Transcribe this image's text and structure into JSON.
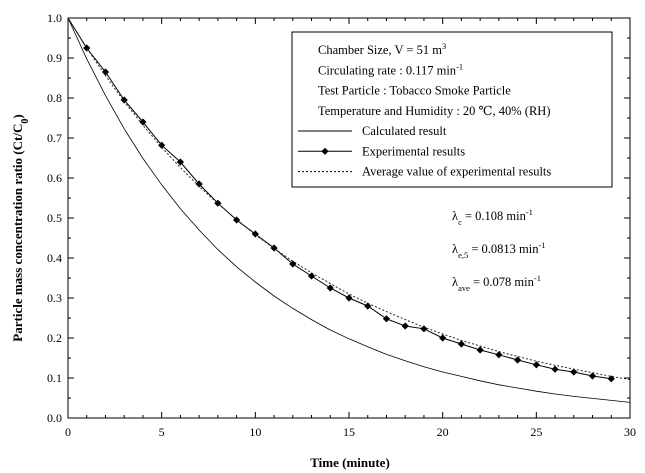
{
  "chart_data": {
    "type": "line",
    "xlabel": "Time (minute)",
    "ylabel": "Particle mass concentration ratio (Ct/C",
    "ylabel_sub": "0",
    "ylabel_end": ")",
    "xlim": [
      0,
      30
    ],
    "ylim": [
      0.0,
      1.0
    ],
    "x_ticks": [
      "0",
      "5",
      "10",
      "15",
      "20",
      "25",
      "30"
    ],
    "y_ticks": [
      "0.0",
      "0.1",
      "0.2",
      "0.3",
      "0.4",
      "0.5",
      "0.6",
      "0.7",
      "0.8",
      "0.9",
      "1.0"
    ],
    "grid": false,
    "legend_position": "top-right",
    "legend_header": [
      {
        "text": "Chamber Size, V = 51 m",
        "sup": "3"
      },
      {
        "text": "Circulating rate : 0.117 min",
        "sup": "-1"
      },
      {
        "text": "Test Particle : Tobacco Smoke Particle",
        "sup": ""
      },
      {
        "text": "Temperature and Humidity : 20 ℃, 40% (RH)",
        "sup": ""
      }
    ],
    "series": [
      {
        "name": "Calculated result",
        "style": "solid",
        "x": [
          0,
          1,
          2,
          3,
          4,
          5,
          6,
          7,
          8,
          9,
          10,
          11,
          12,
          13,
          14,
          15,
          16,
          17,
          18,
          19,
          20,
          21,
          22,
          23,
          24,
          25,
          26,
          27,
          28,
          29,
          30
        ],
        "y": [
          1.0,
          0.898,
          0.806,
          0.723,
          0.649,
          0.583,
          0.523,
          0.47,
          0.421,
          0.378,
          0.34,
          0.305,
          0.274,
          0.246,
          0.22,
          0.198,
          0.178,
          0.159,
          0.143,
          0.128,
          0.115,
          0.104,
          0.093,
          0.083,
          0.075,
          0.067,
          0.06,
          0.054,
          0.049,
          0.044,
          0.039
        ]
      },
      {
        "name": "Experimental results",
        "style": "solid-diamond",
        "x": [
          0,
          1,
          2,
          3,
          4,
          5,
          6,
          7,
          8,
          9,
          10,
          11,
          12,
          13,
          14,
          15,
          16,
          17,
          18,
          19,
          20,
          21,
          22,
          23,
          24,
          25,
          26,
          27,
          28,
          29
        ],
        "y": [
          1.0,
          0.925,
          0.865,
          0.795,
          0.74,
          0.682,
          0.64,
          0.585,
          0.537,
          0.495,
          0.46,
          0.425,
          0.385,
          0.355,
          0.325,
          0.3,
          0.28,
          0.248,
          0.23,
          0.223,
          0.2,
          0.185,
          0.17,
          0.158,
          0.145,
          0.133,
          0.122,
          0.115,
          0.105,
          0.098
        ]
      },
      {
        "name": "Average value of experimental results",
        "style": "dotted",
        "x": [
          0,
          1,
          2,
          3,
          4,
          5,
          6,
          7,
          8,
          9,
          10,
          11,
          12,
          13,
          14,
          15,
          16,
          17,
          18,
          19,
          20,
          21,
          22,
          23,
          24,
          25,
          26,
          27,
          28,
          29,
          30
        ],
        "y": [
          1.0,
          0.925,
          0.856,
          0.791,
          0.732,
          0.677,
          0.626,
          0.579,
          0.536,
          0.496,
          0.458,
          0.424,
          0.392,
          0.363,
          0.336,
          0.31,
          0.287,
          0.266,
          0.246,
          0.227,
          0.21,
          0.194,
          0.18,
          0.166,
          0.154,
          0.142,
          0.132,
          0.122,
          0.113,
          0.104,
          0.096
        ]
      }
    ],
    "annotations": [
      {
        "symbol": "λ",
        "sub": "c",
        "text": " = 0.108 min",
        "sup": "-1"
      },
      {
        "symbol": "λ",
        "sub": "e,5",
        "text": " = 0.0813 min",
        "sup": "-1"
      },
      {
        "symbol": "λ",
        "sub": "ave",
        "text": " = 0.078 min",
        "sup": "-1"
      }
    ]
  }
}
